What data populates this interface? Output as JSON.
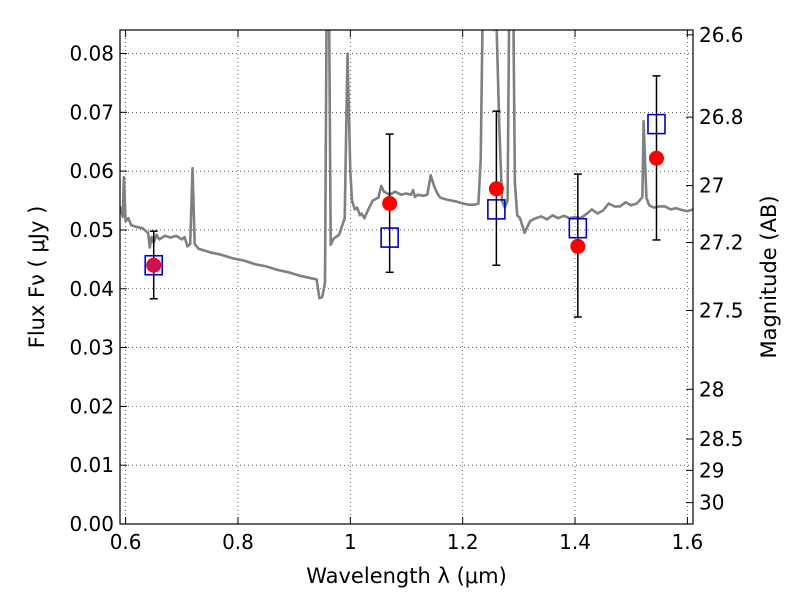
{
  "chart_data": {
    "type": "scatter",
    "xlabel": "Wavelength  λ (μm)",
    "ylabel": "Flux  Fν  ( μJy )",
    "ylabel_right": "Magnitude (AB)",
    "xlim": [
      0.59,
      1.61
    ],
    "ylim": [
      0.0,
      0.084
    ],
    "grid": true,
    "x_ticks": [
      0.6,
      0.8,
      1.0,
      1.2,
      1.4,
      1.6
    ],
    "x_tick_labels": [
      "0.6",
      "0.8",
      "1",
      "1.2",
      "1.4",
      "1.6"
    ],
    "y_ticks": [
      0.0,
      0.01,
      0.02,
      0.03,
      0.04,
      0.05,
      0.06,
      0.07,
      0.08
    ],
    "y_tick_labels": [
      "0.00",
      "0.01",
      "0.02",
      "0.03",
      "0.04",
      "0.05",
      "0.06",
      "0.07",
      "0.08"
    ],
    "right_tick_labels": [
      "26.6",
      "26.8",
      "27",
      "27.2",
      "27.5",
      "28",
      "28.5",
      "29",
      "30"
    ],
    "right_tick_magnitudes": [
      26.6,
      26.8,
      27.0,
      27.2,
      27.5,
      28.0,
      28.5,
      29.0,
      30.0
    ],
    "series": [
      {
        "kind": "model_spectrum",
        "color": "#808080",
        "points": [
          [
            0.59,
            0.054
          ],
          [
            0.595,
            0.0522
          ],
          [
            0.597,
            0.059
          ],
          [
            0.6,
            0.0515
          ],
          [
            0.605,
            0.052
          ],
          [
            0.61,
            0.0508
          ],
          [
            0.62,
            0.0505
          ],
          [
            0.63,
            0.0503
          ],
          [
            0.64,
            0.0495
          ],
          [
            0.643,
            0.047
          ],
          [
            0.646,
            0.0488
          ],
          [
            0.65,
            0.0478
          ],
          [
            0.655,
            0.0492
          ],
          [
            0.66,
            0.0484
          ],
          [
            0.67,
            0.049
          ],
          [
            0.68,
            0.0487
          ],
          [
            0.69,
            0.049
          ],
          [
            0.7,
            0.0484
          ],
          [
            0.705,
            0.0488
          ],
          [
            0.71,
            0.0472
          ],
          [
            0.715,
            0.0476
          ],
          [
            0.719,
            0.0605
          ],
          [
            0.723,
            0.0476
          ],
          [
            0.73,
            0.0468
          ],
          [
            0.75,
            0.0462
          ],
          [
            0.77,
            0.0458
          ],
          [
            0.79,
            0.0452
          ],
          [
            0.81,
            0.0448
          ],
          [
            0.83,
            0.0442
          ],
          [
            0.85,
            0.0438
          ],
          [
            0.87,
            0.0432
          ],
          [
            0.89,
            0.0428
          ],
          [
            0.91,
            0.0422
          ],
          [
            0.93,
            0.0418
          ],
          [
            0.94,
            0.0416
          ],
          [
            0.945,
            0.0384
          ],
          [
            0.95,
            0.0386
          ],
          [
            0.955,
            0.041
          ],
          [
            0.958,
            0.09
          ],
          [
            0.962,
            0.09
          ],
          [
            0.965,
            0.0475
          ],
          [
            0.97,
            0.0485
          ],
          [
            0.98,
            0.0492
          ],
          [
            0.99,
            0.052
          ],
          [
            0.995,
            0.08
          ],
          [
            1.0,
            0.06
          ],
          [
            1.003,
            0.055
          ],
          [
            1.008,
            0.0535
          ],
          [
            1.012,
            0.0538
          ],
          [
            1.017,
            0.0525
          ],
          [
            1.02,
            0.0528
          ],
          [
            1.025,
            0.052
          ],
          [
            1.032,
            0.0535
          ],
          [
            1.04,
            0.055
          ],
          [
            1.05,
            0.0555
          ],
          [
            1.055,
            0.0575
          ],
          [
            1.06,
            0.0565
          ],
          [
            1.07,
            0.056
          ],
          [
            1.08,
            0.0565
          ],
          [
            1.09,
            0.056
          ],
          [
            1.1,
            0.0562
          ],
          [
            1.108,
            0.056
          ],
          [
            1.112,
            0.0568
          ],
          [
            1.115,
            0.0556
          ],
          [
            1.12,
            0.056
          ],
          [
            1.13,
            0.0558
          ],
          [
            1.137,
            0.056
          ],
          [
            1.143,
            0.0593
          ],
          [
            1.15,
            0.0572
          ],
          [
            1.155,
            0.0562
          ],
          [
            1.16,
            0.0555
          ],
          [
            1.17,
            0.0552
          ],
          [
            1.18,
            0.055
          ],
          [
            1.19,
            0.0548
          ],
          [
            1.2,
            0.0545
          ],
          [
            1.21,
            0.0543
          ],
          [
            1.22,
            0.0543
          ],
          [
            1.228,
            0.0545
          ],
          [
            1.232,
            0.062
          ],
          [
            1.236,
            0.09
          ],
          [
            1.24,
            0.09
          ],
          [
            1.245,
            0.087
          ],
          [
            1.25,
            0.088
          ],
          [
            1.255,
            0.084
          ],
          [
            1.26,
            0.086
          ],
          [
            1.265,
            0.068
          ],
          [
            1.27,
            0.055
          ],
          [
            1.275,
            0.0538
          ],
          [
            1.28,
            0.055
          ],
          [
            1.283,
            0.09
          ],
          [
            1.29,
            0.09
          ],
          [
            1.293,
            0.058
          ],
          [
            1.297,
            0.0525
          ],
          [
            1.302,
            0.052
          ],
          [
            1.307,
            0.0505
          ],
          [
            1.31,
            0.0495
          ],
          [
            1.32,
            0.0515
          ],
          [
            1.33,
            0.052
          ],
          [
            1.34,
            0.0523
          ],
          [
            1.35,
            0.0518
          ],
          [
            1.36,
            0.0525
          ],
          [
            1.37,
            0.052
          ],
          [
            1.38,
            0.0524
          ],
          [
            1.39,
            0.052
          ],
          [
            1.4,
            0.0522
          ],
          [
            1.41,
            0.052
          ],
          [
            1.42,
            0.0527
          ],
          [
            1.43,
            0.0535
          ],
          [
            1.44,
            0.0528
          ],
          [
            1.45,
            0.0533
          ],
          [
            1.46,
            0.0545
          ],
          [
            1.47,
            0.054
          ],
          [
            1.48,
            0.054
          ],
          [
            1.49,
            0.0547
          ],
          [
            1.5,
            0.0542
          ],
          [
            1.51,
            0.0545
          ],
          [
            1.515,
            0.055
          ],
          [
            1.52,
            0.0556
          ],
          [
            1.522,
            0.0685
          ],
          [
            1.527,
            0.0555
          ],
          [
            1.532,
            0.0542
          ],
          [
            1.54,
            0.0538
          ],
          [
            1.55,
            0.054
          ],
          [
            1.56,
            0.054
          ],
          [
            1.57,
            0.0535
          ],
          [
            1.58,
            0.0537
          ],
          [
            1.59,
            0.0534
          ],
          [
            1.6,
            0.0532
          ],
          [
            1.61,
            0.0535
          ]
        ]
      },
      {
        "kind": "observed",
        "color": "#ff0000",
        "marker": "circle",
        "points": [
          {
            "x": 0.65,
            "y": 0.044,
            "yerr_low": 0.0383,
            "yerr_high": 0.0498
          },
          {
            "x": 1.07,
            "y": 0.0545,
            "yerr_low": 0.0428,
            "yerr_high": 0.0663
          },
          {
            "x": 1.26,
            "y": 0.057,
            "yerr_low": 0.044,
            "yerr_high": 0.0702
          },
          {
            "x": 1.405,
            "y": 0.0472,
            "yerr_low": 0.0352,
            "yerr_high": 0.0595
          },
          {
            "x": 1.545,
            "y": 0.0622,
            "yerr_low": 0.0483,
            "yerr_high": 0.0762
          }
        ]
      },
      {
        "kind": "model_photometry",
        "color": "#0000cc",
        "marker": "open-square",
        "points": [
          {
            "x": 0.65,
            "y": 0.044
          },
          {
            "x": 1.07,
            "y": 0.0487
          },
          {
            "x": 1.26,
            "y": 0.0535
          },
          {
            "x": 1.405,
            "y": 0.0503
          },
          {
            "x": 1.545,
            "y": 0.068
          }
        ]
      }
    ]
  }
}
